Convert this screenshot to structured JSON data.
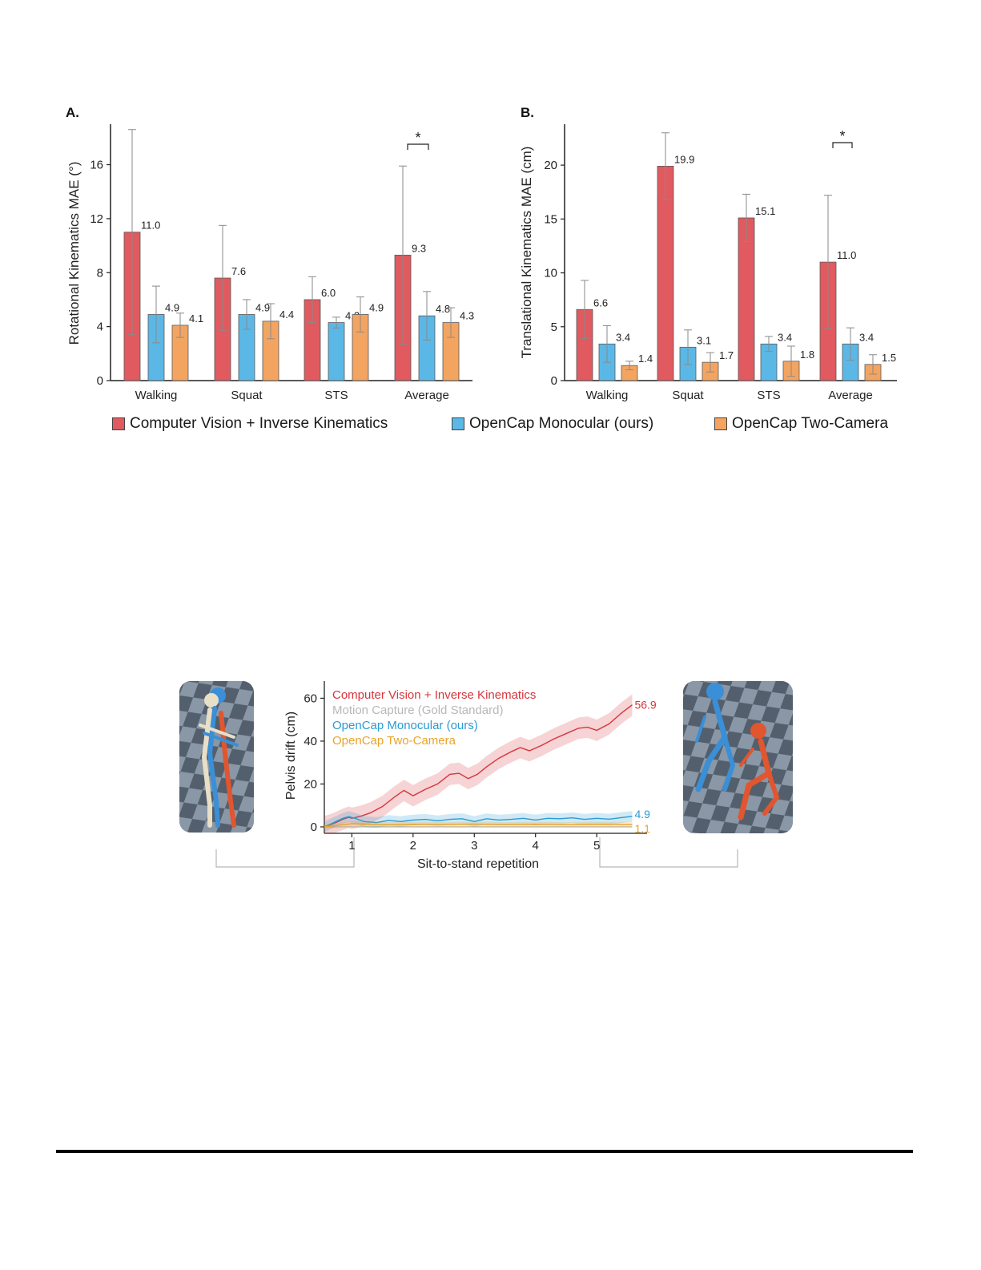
{
  "colors": {
    "cv": "#e05a5f",
    "mono": "#5bb8e6",
    "two": "#f3a460",
    "mocap": "#b8b8b8",
    "cv_line": "#d7353b",
    "mono_line": "#2b9bd3",
    "two_line": "#e8a42b"
  },
  "legend": {
    "cv": "Computer Vision + Inverse Kinematics",
    "mono": "OpenCap Monocular (ours)",
    "two": "OpenCap Two-Camera"
  },
  "chart_data": [
    {
      "type": "bar",
      "panel": "A.",
      "title": "",
      "ylabel": "Rotational Kinematics MAE (°)",
      "xlabel": "",
      "ylim": [
        0,
        19
      ],
      "yticks": [
        0,
        4,
        8,
        12,
        16
      ],
      "categories": [
        "Walking",
        "Squat",
        "STS",
        "Average"
      ],
      "series": [
        {
          "name": "Computer Vision + Inverse Kinematics",
          "key": "cv",
          "values": [
            11.0,
            7.6,
            6.0,
            9.3
          ],
          "labels": [
            "11.0",
            "7.6",
            "6.0",
            "9.3"
          ],
          "err": [
            7.6,
            3.9,
            1.7,
            6.6
          ]
        },
        {
          "name": "OpenCap Monocular (ours)",
          "key": "mono",
          "values": [
            4.9,
            4.9,
            4.3,
            4.8
          ],
          "labels": [
            "4.9",
            "4.9",
            "4.3",
            "4.8"
          ],
          "err": [
            2.1,
            1.1,
            0.4,
            1.8
          ]
        },
        {
          "name": "OpenCap Two-Camera",
          "key": "two",
          "values": [
            4.1,
            4.4,
            4.9,
            4.3
          ],
          "labels": [
            "4.1",
            "4.4",
            "4.9",
            "4.3"
          ],
          "err": [
            0.9,
            1.3,
            1.3,
            1.1
          ]
        }
      ],
      "significance": {
        "category": "Average",
        "mark": "*"
      }
    },
    {
      "type": "bar",
      "panel": "B.",
      "title": "",
      "ylabel": "Translational Kinematics MAE (cm)",
      "xlabel": "",
      "ylim": [
        0,
        23.8
      ],
      "yticks": [
        0,
        5,
        10,
        15,
        20
      ],
      "categories": [
        "Walking",
        "Squat",
        "STS",
        "Average"
      ],
      "series": [
        {
          "name": "Computer Vision + Inverse Kinematics",
          "key": "cv",
          "values": [
            6.6,
            19.9,
            15.1,
            11.0
          ],
          "labels": [
            "6.6",
            "19.9",
            "15.1",
            "11.0"
          ],
          "err": [
            2.7,
            3.1,
            2.2,
            6.2
          ]
        },
        {
          "name": "OpenCap Monocular (ours)",
          "key": "mono",
          "values": [
            3.4,
            3.1,
            3.4,
            3.4
          ],
          "labels": [
            "3.4",
            "3.1",
            "3.4",
            "3.4"
          ],
          "err": [
            1.7,
            1.6,
            0.7,
            1.5
          ]
        },
        {
          "name": "OpenCap Two-Camera",
          "key": "two",
          "values": [
            1.4,
            1.7,
            1.8,
            1.5
          ],
          "labels": [
            "1.4",
            "1.7",
            "1.8",
            "1.5"
          ],
          "err": [
            0.4,
            0.9,
            1.4,
            0.9
          ]
        }
      ],
      "significance": {
        "category": "Average",
        "mark": "*"
      }
    },
    {
      "type": "line",
      "title": "",
      "xlabel": "Sit-to-stand repetition",
      "ylabel": "Pelvis drift (cm)",
      "xlim": [
        0.55,
        5.6
      ],
      "ylim": [
        -3,
        68
      ],
      "xticks": [
        1,
        2,
        3,
        4,
        5
      ],
      "yticks": [
        0,
        20,
        40,
        60
      ],
      "legend_position": "top-left",
      "series": [
        {
          "name": "Computer Vision + Inverse Kinematics",
          "key": "cv",
          "end_label": "56.9",
          "x": [
            0.55,
            0.7,
            0.85,
            0.95,
            1.0,
            1.15,
            1.3,
            1.5,
            1.7,
            1.85,
            2.0,
            2.2,
            2.4,
            2.6,
            2.75,
            2.9,
            3.05,
            3.2,
            3.4,
            3.6,
            3.75,
            3.9,
            4.1,
            4.3,
            4.5,
            4.7,
            4.85,
            5.0,
            5.2,
            5.4,
            5.58
          ],
          "y": [
            0,
            1.5,
            3.5,
            4.5,
            4.0,
            5.0,
            6.5,
            9.5,
            14.0,
            17.0,
            14.5,
            17.5,
            20.0,
            24.5,
            25.0,
            22.5,
            24.5,
            28.0,
            32.0,
            35.0,
            37.0,
            35.5,
            38.0,
            41.0,
            43.5,
            46.0,
            46.5,
            45.0,
            48.0,
            53.0,
            56.9
          ],
          "band": 5
        },
        {
          "name": "Motion Capture (Gold Standard)",
          "key": "mocap",
          "x": [
            0.55,
            5.58
          ],
          "y": [
            0,
            0
          ]
        },
        {
          "name": "OpenCap Monocular (ours)",
          "key": "mono",
          "end_label": "4.9",
          "x": [
            0.55,
            0.7,
            0.85,
            0.95,
            1.05,
            1.2,
            1.4,
            1.6,
            1.8,
            2.0,
            2.2,
            2.4,
            2.6,
            2.8,
            3.0,
            3.2,
            3.4,
            3.6,
            3.8,
            4.0,
            4.2,
            4.4,
            4.6,
            4.8,
            5.0,
            5.2,
            5.4,
            5.58
          ],
          "y": [
            0,
            2.0,
            4.0,
            4.8,
            4.0,
            2.5,
            2.0,
            3.0,
            2.5,
            3.2,
            3.5,
            2.8,
            3.5,
            3.8,
            2.5,
            3.8,
            3.2,
            3.5,
            4.0,
            3.2,
            4.0,
            3.8,
            4.2,
            3.5,
            4.0,
            3.6,
            4.3,
            4.9
          ],
          "band": 2.5
        },
        {
          "name": "OpenCap Two-Camera",
          "key": "two",
          "end_label": "1.1",
          "x": [
            0.55,
            0.8,
            1.0,
            1.3,
            1.6,
            2.0,
            2.5,
            3.0,
            3.5,
            4.0,
            4.5,
            5.0,
            5.58
          ],
          "y": [
            0,
            0.8,
            1.5,
            1.2,
            1.0,
            1.2,
            1.1,
            1.3,
            1.0,
            1.2,
            1.0,
            1.2,
            1.1
          ],
          "band": 1.2
        }
      ]
    }
  ]
}
